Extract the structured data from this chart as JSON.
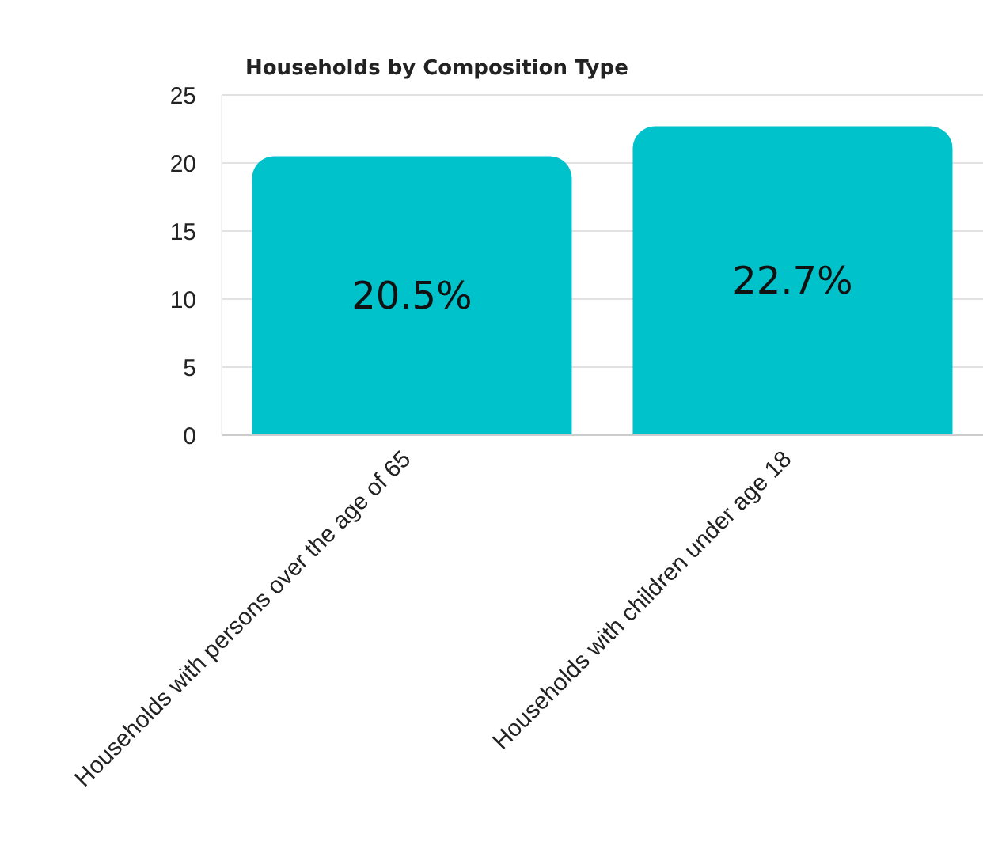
{
  "chart_data": {
    "type": "bar",
    "title": "Households by Composition Type",
    "categories": [
      "Households with persons over the age of 65",
      "Households with children under age 18"
    ],
    "values": [
      20.5,
      22.7
    ],
    "color": "#00c2cb",
    "value_labels": [
      "20.5%",
      "22.7%"
    ],
    "ylim": [
      0,
      25
    ],
    "yticks": [
      0,
      5,
      10,
      15,
      20,
      25
    ],
    "grid": "y"
  }
}
